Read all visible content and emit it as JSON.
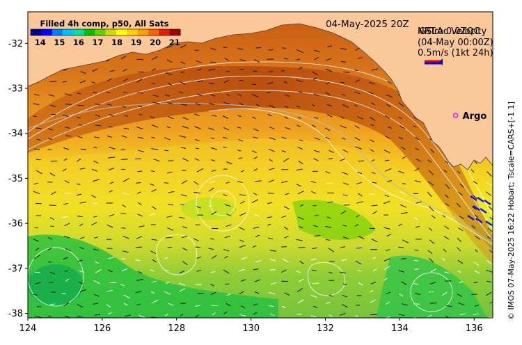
{
  "map": {
    "date_label": "04-May-2025 20Z",
    "colorbar": {
      "title": "Filled 4h comp, p50, All Sats",
      "ticks": [
        "14",
        "15",
        "16",
        "17",
        "18",
        "19",
        "20",
        "21"
      ],
      "min": 13.5,
      "max": 21.3,
      "colors": [
        "#00008b",
        "#0000ff",
        "#0080ff",
        "#00c0ff",
        "#00e0a0",
        "#00c000",
        "#60d000",
        "#c8e000",
        "#ffff00",
        "#ffd000",
        "#ffa000",
        "#ff6000",
        "#e02000",
        "#a00000"
      ]
    },
    "velocity_legend": {
      "line1": "NRTroc Velocity",
      "line2": "GSLA 0.0ZQC",
      "line3": "(04-May 00:00Z)",
      "line4": "0.5m/s (1kt 24h)"
    },
    "argo": {
      "label": "Argo",
      "lon": 135.5,
      "lat": -33.6,
      "color": "#ff00ff"
    },
    "x_axis": {
      "ticks": [
        "124",
        "126",
        "128",
        "130",
        "132",
        "134",
        "136"
      ],
      "range": [
        124,
        136.5
      ]
    },
    "y_axis": {
      "ticks": [
        "-32",
        "-33",
        "-34",
        "-35",
        "-36",
        "-37",
        "-38"
      ],
      "range": [
        -38.1,
        -31.3
      ]
    },
    "credit": "© IMOS 07-May-2025 16:22 Hobart; Tscale=CARS+[-1 1]",
    "land_color": "#fbc89a"
  }
}
